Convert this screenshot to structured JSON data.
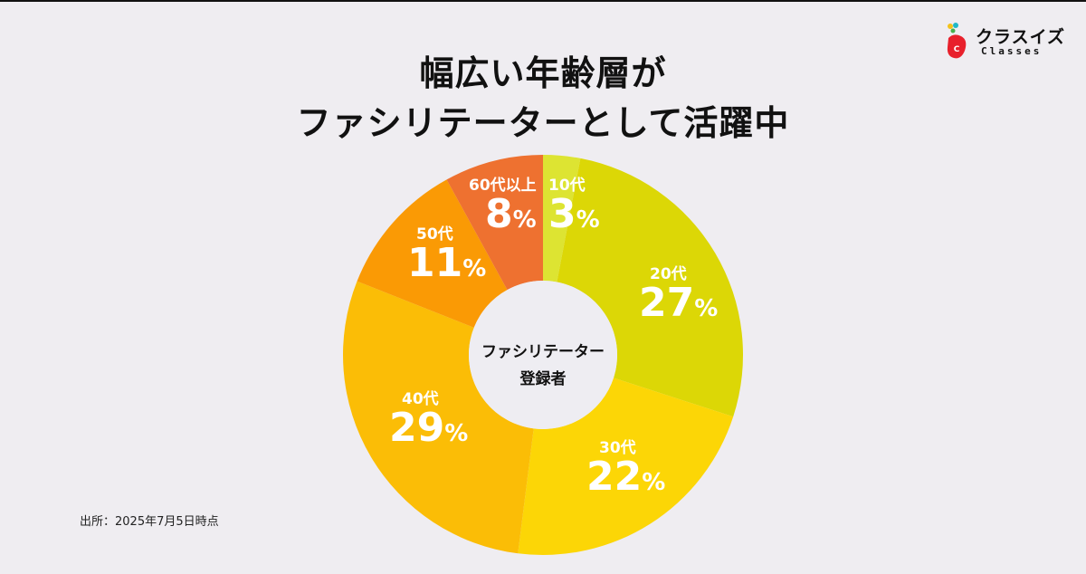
{
  "header": {
    "title_line1": "幅広い年齢層が",
    "title_line2": "ファシリテーターとして活躍中"
  },
  "logo": {
    "name": "クラスイズ",
    "sub": "Classes",
    "mark_letter": "C"
  },
  "center_label": {
    "line1": "ファシリテーター",
    "line2": "登録者"
  },
  "footer": {
    "source": "出所：2025年7月5日時点"
  },
  "colors": {
    "background": "#efedf1",
    "seg_10s": "#dde432",
    "seg_20s": "#dcd706",
    "seg_30s": "#fcd606",
    "seg_40s": "#fbbd06",
    "seg_50s": "#fa9a05",
    "seg_60s": "#ee7130"
  },
  "segments": [
    {
      "age": "10代",
      "pct": "3",
      "unit": "%"
    },
    {
      "age": "20代",
      "pct": "27",
      "unit": "%"
    },
    {
      "age": "30代",
      "pct": "22",
      "unit": "%"
    },
    {
      "age": "40代",
      "pct": "29",
      "unit": "%"
    },
    {
      "age": "50代",
      "pct": "11",
      "unit": "%"
    },
    {
      "age": "60代以上",
      "pct": "8",
      "unit": "%"
    }
  ],
  "chart_data": {
    "type": "pie",
    "title": "幅広い年齢層がファシリテーターとして活躍中",
    "subtitle": "ファシリテーター登録者",
    "donut": true,
    "categories": [
      "10代",
      "20代",
      "30代",
      "40代",
      "50代",
      "60代以上"
    ],
    "values": [
      3,
      27,
      22,
      29,
      11,
      8
    ],
    "unit": "%",
    "start_angle": "top, clockwise",
    "source": "出所：2025年7月5日時点"
  }
}
